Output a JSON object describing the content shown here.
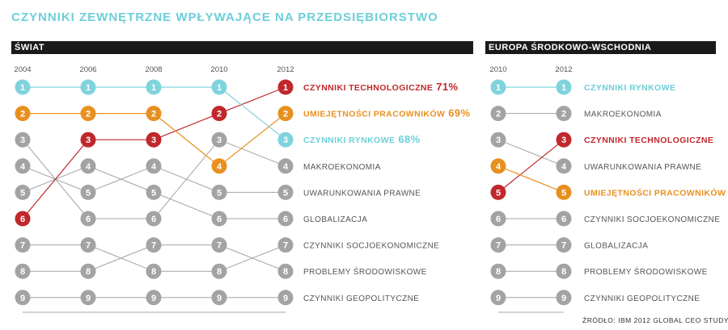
{
  "title": "CZYNNIKI ZEWNĘTRZNE WPŁYWAJĄCE NA PRZEDSIĘBIORSTWO",
  "source": "ŹRÓDŁO: IBM 2012 GLOBAL CEO STUDY",
  "colors": {
    "teal": "#6ccfd9",
    "orange": "#e8901f",
    "red": "#c0282c",
    "gray": "#999999",
    "dark": "#1a1a1a"
  },
  "chart_data": [
    {
      "type": "bump",
      "title": "ŚWIAT",
      "years": [
        "2004",
        "2006",
        "2008",
        "2010",
        "2012"
      ],
      "series": [
        {
          "name": "CZYNNIKI TECHNOLOGICZNE",
          "value_label": "71%",
          "color": "red",
          "ranks": [
            6,
            3,
            3,
            2,
            1
          ]
        },
        {
          "name": "UMIEJĘTNOŚCI PRACOWNIKÓW",
          "value_label": "69%",
          "color": "orange",
          "ranks": [
            2,
            2,
            2,
            4,
            2
          ]
        },
        {
          "name": "CZYNNIKI RYNKOWE",
          "value_label": "68%",
          "color": "teal",
          "ranks": [
            1,
            1,
            1,
            1,
            3
          ]
        },
        {
          "name": "MAKROEKONOMIA",
          "value_label": "",
          "color": "gray",
          "ranks": [
            3,
            6,
            6,
            3,
            4
          ]
        },
        {
          "name": "UWARUNKOWANIA PRAWNE",
          "value_label": "",
          "color": "gray",
          "ranks": [
            4,
            5,
            4,
            5,
            5
          ]
        },
        {
          "name": "GLOBALIZACJA",
          "value_label": "",
          "color": "gray",
          "ranks": [
            5,
            4,
            5,
            6,
            6
          ]
        },
        {
          "name": "CZYNNIKI SOCJOEKONOMICZNE",
          "value_label": "",
          "color": "gray",
          "ranks": [
            7,
            7,
            8,
            8,
            7
          ]
        },
        {
          "name": "PROBLEMY ŚRODOWISKOWE",
          "value_label": "",
          "color": "gray",
          "ranks": [
            8,
            8,
            7,
            7,
            8
          ]
        },
        {
          "name": "CZYNNIKI GEOPOLITYCZNE",
          "value_label": "",
          "color": "gray",
          "ranks": [
            9,
            9,
            9,
            9,
            9
          ]
        }
      ]
    },
    {
      "type": "bump",
      "title": "EUROPA ŚRODKOWO-WSCHODNIA",
      "years": [
        "2010",
        "2012"
      ],
      "series": [
        {
          "name": "CZYNNIKI RYNKOWE",
          "value_label": "",
          "color": "teal",
          "ranks": [
            1,
            1
          ]
        },
        {
          "name": "MAKROEKONOMIA",
          "value_label": "",
          "color": "gray",
          "ranks": [
            2,
            2
          ]
        },
        {
          "name": "CZYNNIKI TECHNOLOGICZNE",
          "value_label": "",
          "color": "red",
          "ranks": [
            5,
            3
          ]
        },
        {
          "name": "UWARUNKOWANIA PRAWNE",
          "value_label": "",
          "color": "gray",
          "ranks": [
            3,
            4
          ]
        },
        {
          "name": "UMIEJĘTNOŚCI PRACOWNIKÓW",
          "value_label": "",
          "color": "orange",
          "ranks": [
            4,
            5
          ]
        },
        {
          "name": "CZYNNIKI SOCJOEKONOMICZNE",
          "value_label": "",
          "color": "gray",
          "ranks": [
            6,
            6
          ]
        },
        {
          "name": "GLOBALIZACJA",
          "value_label": "",
          "color": "gray",
          "ranks": [
            7,
            7
          ]
        },
        {
          "name": "PROBLEMY ŚRODOWISKOWE",
          "value_label": "",
          "color": "gray",
          "ranks": [
            8,
            8
          ]
        },
        {
          "name": "CZYNNIKI GEOPOLITYCZNE",
          "value_label": "",
          "color": "gray",
          "ranks": [
            9,
            9
          ]
        }
      ]
    }
  ]
}
